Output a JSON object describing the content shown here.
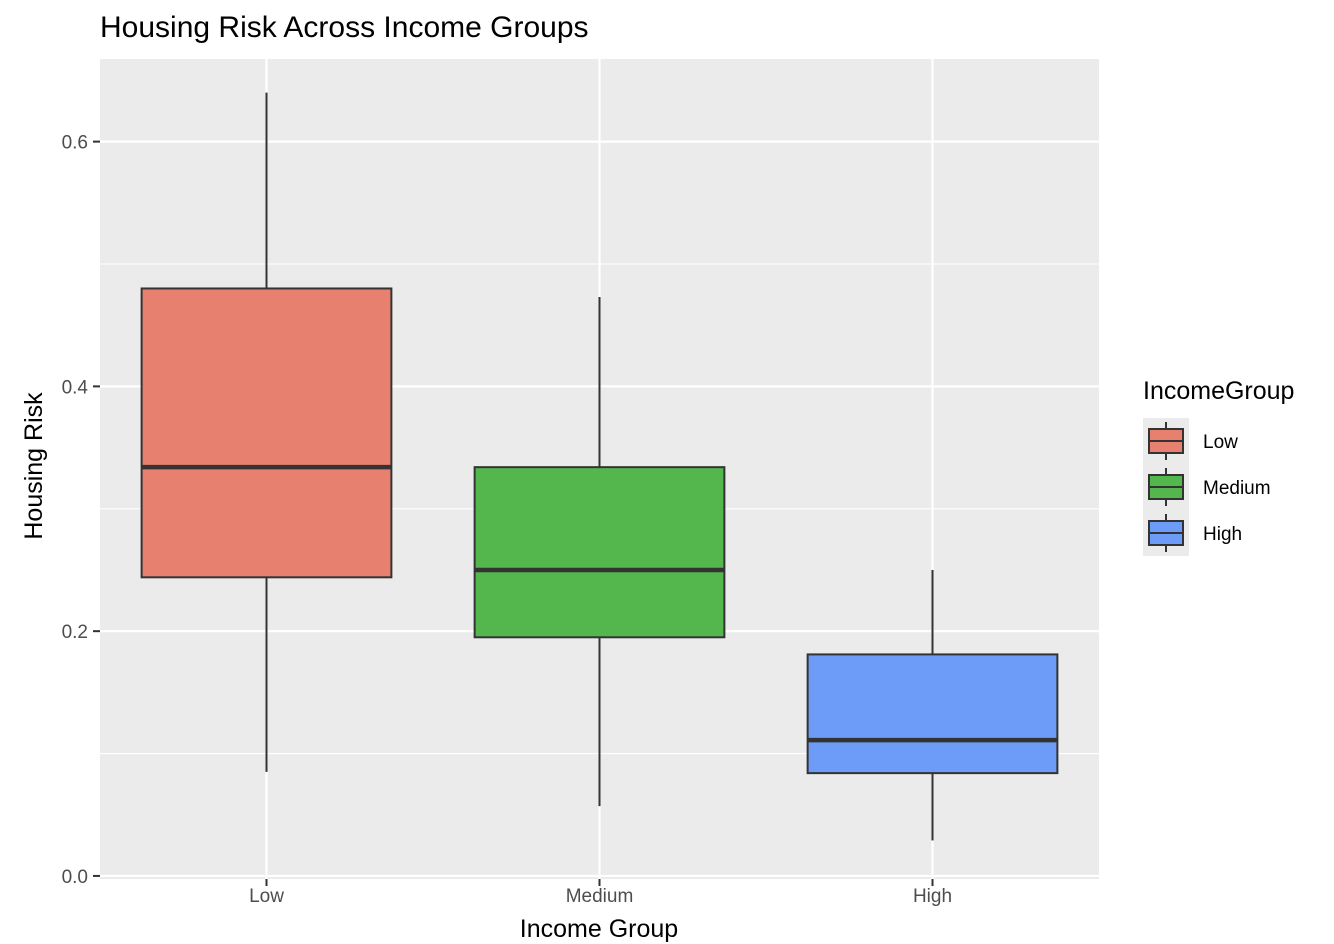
{
  "chart_data": {
    "type": "box",
    "title": "Housing Risk Across Income Groups",
    "xlabel": "Income Group",
    "ylabel": "Housing Risk",
    "categories": [
      "Low",
      "Medium",
      "High"
    ],
    "ylim": [
      -0.0025,
      0.6675
    ],
    "yticks": [
      0.0,
      0.2,
      0.4,
      0.6
    ],
    "ytick_labels": [
      "0.0",
      "0.2",
      "0.4",
      "0.6"
    ],
    "grid": true,
    "legend": {
      "title": "IncomeGroup",
      "position": "right",
      "entries": [
        "Low",
        "Medium",
        "High"
      ]
    },
    "boxes": [
      {
        "category": "Low",
        "min": 0.085,
        "q1": 0.244,
        "median": 0.334,
        "q3": 0.48,
        "max": 0.64,
        "color": "#E8806F"
      },
      {
        "category": "Medium",
        "min": 0.057,
        "q1": 0.195,
        "median": 0.25,
        "q3": 0.334,
        "max": 0.473,
        "color": "#54B74E"
      },
      {
        "category": "High",
        "min": 0.029,
        "q1": 0.084,
        "median": 0.111,
        "q3": 0.181,
        "max": 0.25,
        "color": "#6C9CF8"
      }
    ]
  }
}
